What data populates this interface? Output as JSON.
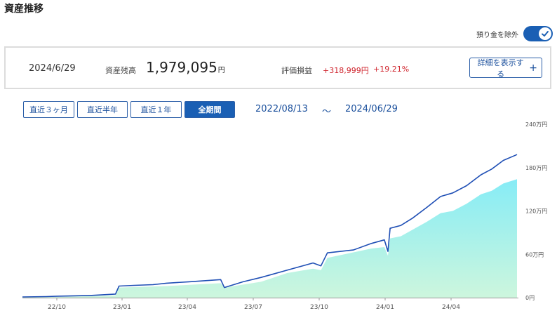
{
  "page": {
    "title": "資産推移"
  },
  "toggle": {
    "label": "預り金を除外",
    "on": true
  },
  "summary": {
    "date": "2024/6/29",
    "balance_label": "資産残高",
    "balance_value": "1,979,095",
    "balance_unit": "円",
    "pl_label": "評価損益",
    "pl_value": "+318,999円",
    "pl_rate": "+19.21%",
    "detail_button": "詳細を表示する"
  },
  "periods": [
    {
      "label": "直近３ヶ月",
      "active": false
    },
    {
      "label": "直近半年",
      "active": false
    },
    {
      "label": "直近１年",
      "active": false
    },
    {
      "label": "全期間",
      "active": true
    }
  ],
  "range": {
    "start": "2022/08/13",
    "separator": "～",
    "end": "2024/06/29"
  },
  "colors": {
    "accent": "#1a5fb4",
    "line": "#1f4fb5",
    "negative": "#d0262f",
    "area_top": "#86ecf6",
    "area_bottom": "#cdf6dd"
  },
  "chart_data": {
    "type": "area",
    "x_ticks": [
      "22/10",
      "23/01",
      "23/04",
      "23/07",
      "23/10",
      "24/01",
      "24/04"
    ],
    "y_ticks": [
      "0円",
      "60万円",
      "120万円",
      "180万円",
      "240万円"
    ],
    "ylim": [
      0,
      240
    ],
    "x_range": [
      "2022/08/13",
      "2024/06/29"
    ],
    "series": [
      {
        "kind": "line",
        "points": [
          [
            "2022/08/13",
            1
          ],
          [
            "2022/09/15",
            1.5
          ],
          [
            "2022/10/01",
            2
          ],
          [
            "2022/11/15",
            3
          ],
          [
            "2022/12/20",
            5
          ],
          [
            "2022/12/25",
            16
          ],
          [
            "2023/01/15",
            17
          ],
          [
            "2023/02/10",
            18
          ],
          [
            "2023/03/01",
            20
          ],
          [
            "2023/04/01",
            22
          ],
          [
            "2023/05/15",
            25
          ],
          [
            "2023/05/20",
            14
          ],
          [
            "2023/06/15",
            22
          ],
          [
            "2023/07/10",
            28
          ],
          [
            "2023/08/15",
            38
          ],
          [
            "2023/09/20",
            48
          ],
          [
            "2023/10/01",
            44
          ],
          [
            "2023/10/10",
            62
          ],
          [
            "2023/11/15",
            66
          ],
          [
            "2023/12/10",
            75
          ],
          [
            "2023/12/28",
            80
          ],
          [
            "2024/01/02",
            64
          ],
          [
            "2024/01/05",
            96
          ],
          [
            "2024/01/20",
            100
          ],
          [
            "2024/02/05",
            110
          ],
          [
            "2024/02/25",
            125
          ],
          [
            "2024/03/15",
            140
          ],
          [
            "2024/04/01",
            145
          ],
          [
            "2024/04/20",
            155
          ],
          [
            "2024/05/10",
            170
          ],
          [
            "2024/05/25",
            178
          ],
          [
            "2024/06/10",
            190
          ],
          [
            "2024/06/29",
            198
          ]
        ]
      },
      {
        "kind": "area",
        "points": [
          [
            "2022/08/13",
            0.5
          ],
          [
            "2022/10/01",
            1
          ],
          [
            "2022/12/20",
            3
          ],
          [
            "2022/12/25",
            14
          ],
          [
            "2023/03/01",
            16
          ],
          [
            "2023/05/15",
            20
          ],
          [
            "2023/05/20",
            14
          ],
          [
            "2023/07/10",
            22
          ],
          [
            "2023/08/15",
            34
          ],
          [
            "2023/09/20",
            40
          ],
          [
            "2023/10/01",
            38
          ],
          [
            "2023/10/10",
            55
          ],
          [
            "2023/12/10",
            68
          ],
          [
            "2023/12/28",
            70
          ],
          [
            "2024/01/02",
            58
          ],
          [
            "2024/01/05",
            82
          ],
          [
            "2024/01/20",
            85
          ],
          [
            "2024/02/25",
            105
          ],
          [
            "2024/03/15",
            117
          ],
          [
            "2024/04/01",
            120
          ],
          [
            "2024/04/20",
            130
          ],
          [
            "2024/05/10",
            143
          ],
          [
            "2024/05/25",
            148
          ],
          [
            "2024/06/10",
            158
          ],
          [
            "2024/06/29",
            164
          ]
        ]
      }
    ],
    "grid": false
  }
}
